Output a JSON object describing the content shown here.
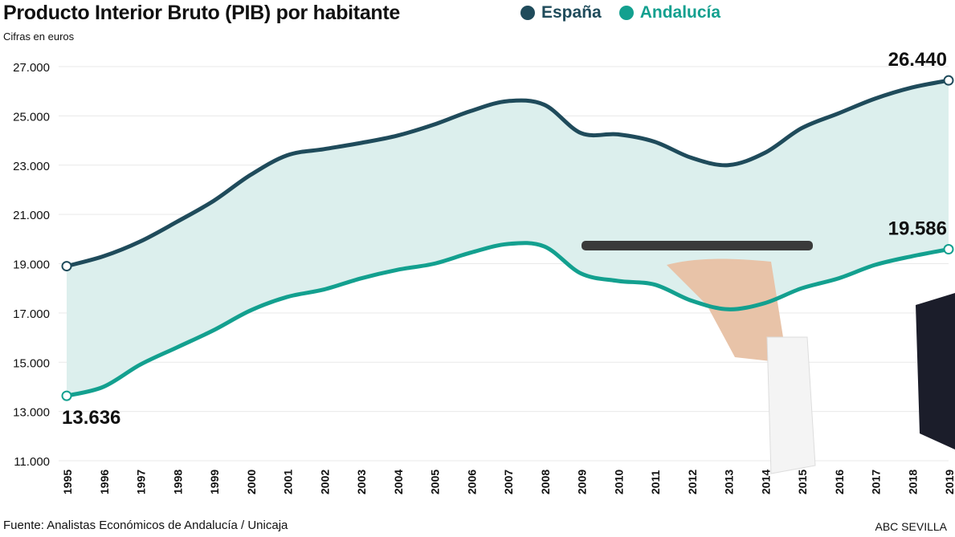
{
  "chart_data": {
    "type": "area",
    "title": "Producto Interior Bruto (PIB) por habitante",
    "subtitle": "Cifras en euros",
    "xlabel": "",
    "ylabel": "",
    "ylim": [
      11000,
      27000
    ],
    "yticks": [
      11000,
      13000,
      15000,
      17000,
      19000,
      21000,
      23000,
      25000,
      27000
    ],
    "ytick_labels": [
      "11.000",
      "13.000",
      "15.000",
      "17.000",
      "19.000",
      "21.000",
      "23.000",
      "25.000",
      "27.000"
    ],
    "grid": true,
    "legend_position": "top",
    "x": [
      "1995",
      "1996",
      "1997",
      "1998",
      "1999",
      "2000",
      "2001",
      "2002",
      "2003",
      "2004",
      "2005",
      "2006",
      "2007",
      "2008",
      "2009",
      "2010",
      "2011",
      "2012",
      "2013",
      "2014",
      "2015",
      "2016",
      "2017",
      "2018",
      "2019"
    ],
    "series": [
      {
        "name": "España",
        "color": "#1f4b5b",
        "values": [
          18900,
          19300,
          19900,
          20700,
          21550,
          22600,
          23400,
          23650,
          23900,
          24200,
          24650,
          25200,
          25600,
          25450,
          24300,
          24250,
          23950,
          23300,
          23000,
          23500,
          24500,
          25100,
          25700,
          26150,
          26440
        ]
      },
      {
        "name": "Andalucía",
        "color": "#13a08f",
        "values": [
          13636,
          14000,
          14900,
          15600,
          16300,
          17100,
          17650,
          17950,
          18400,
          18750,
          19000,
          19450,
          19800,
          19700,
          18600,
          18300,
          18150,
          17500,
          17150,
          17400,
          18000,
          18400,
          18950,
          19300,
          19586
        ]
      }
    ],
    "fill_between_color": "#dcefed",
    "annotations": [
      {
        "series": "España",
        "x": "2019",
        "label": "26.440"
      },
      {
        "series": "Andalucía",
        "x": "2019",
        "label": "19.586"
      },
      {
        "series": "Andalucía",
        "x": "1995",
        "label": "13.636"
      }
    ]
  },
  "footer": {
    "source": "Fuente: Analistas Económicos de Andalucía / Unicaja",
    "credit": "ABC SEVILLA"
  }
}
